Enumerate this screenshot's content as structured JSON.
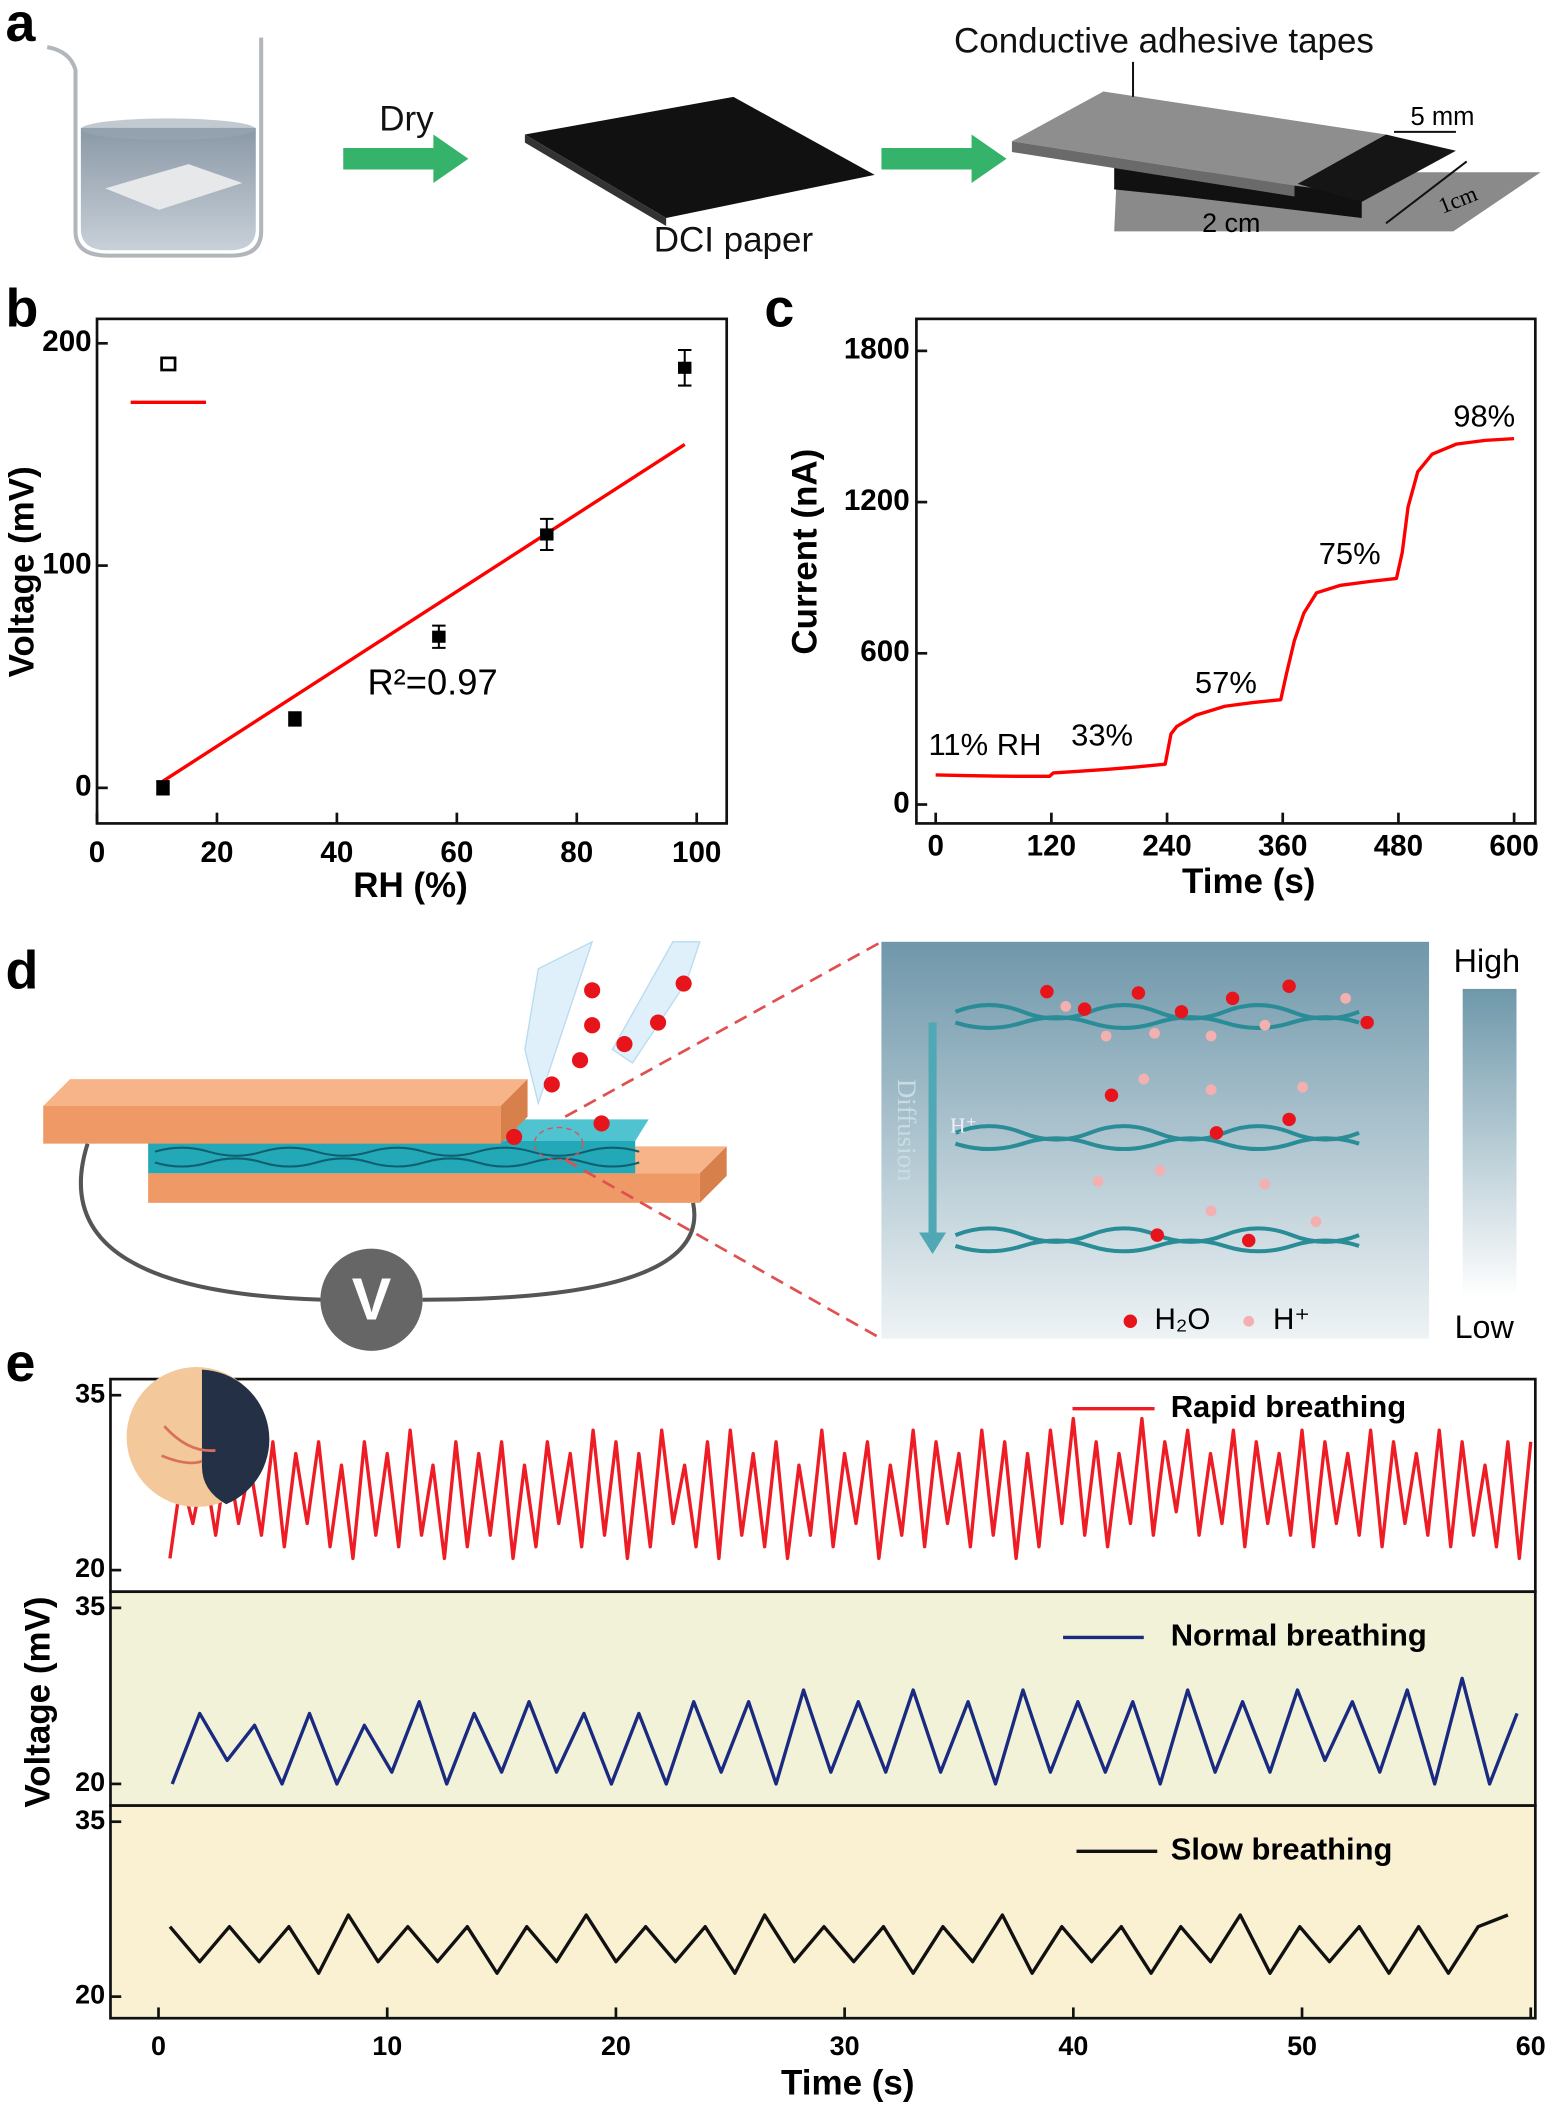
{
  "panel_labels": [
    "a",
    "b",
    "c",
    "d",
    "e"
  ],
  "diagram_a": {
    "step": "Dry",
    "paper": "DCI paper",
    "tapes": "Conductive adhesive tapes",
    "width": "5 mm",
    "depth": "1cm",
    "length": "2 cm"
  },
  "diagram_d": {
    "diffusion": "Diffusion",
    "proton": "H⁺",
    "high": "High",
    "low": "Low",
    "legend": [
      "H₂O",
      "H⁺"
    ],
    "meter": "V"
  },
  "chart_data": [
    {
      "type": "scatter",
      "x_label": "RH (%)",
      "y_label": "Voltage (mV)",
      "annotation": "R²=0.97",
      "x": [
        11,
        33,
        57,
        75,
        98
      ],
      "values": [
        0,
        31,
        68,
        114,
        189
      ],
      "errors": [
        3,
        3,
        5,
        7,
        8
      ],
      "color": "#000000",
      "fit": {
        "x": [
          11,
          98
        ],
        "values": [
          3,
          154.5
        ],
        "color": "#ff0000"
      },
      "xlim": [
        0,
        105
      ],
      "ylim": [
        -16,
        211
      ],
      "xticks": [
        0,
        20,
        40,
        60,
        80,
        100
      ],
      "yticks": [
        0,
        100,
        200
      ]
    },
    {
      "type": "line",
      "x_label": "Time (s)",
      "y_label": "Current (nA)",
      "color": "#ff0000",
      "annotations": [
        "11% RH",
        "33%",
        "57%",
        "75%",
        "98%"
      ],
      "x": [
        0,
        30,
        60,
        90,
        118,
        122,
        150,
        180,
        210,
        238,
        244,
        250,
        270,
        300,
        330,
        358,
        364,
        372,
        382,
        395,
        420,
        450,
        478,
        484,
        490,
        500,
        515,
        540,
        570,
        600
      ],
      "values": [
        117,
        115,
        113,
        112,
        112,
        125,
        132,
        140,
        150,
        160,
        280,
        310,
        355,
        390,
        405,
        416,
        520,
        650,
        760,
        840,
        870,
        885,
        897,
        1000,
        1180,
        1320,
        1390,
        1430,
        1445,
        1452
      ],
      "xlim": [
        -20,
        622
      ],
      "ylim": [
        -75,
        1927
      ],
      "xticks": [
        0,
        120,
        240,
        360,
        480,
        600
      ],
      "yticks": [
        0,
        600,
        1200,
        1800
      ]
    },
    {
      "type": "line",
      "legend": "upper right",
      "xlim": [
        -2.1,
        60.2
      ],
      "ylim": [
        18.15,
        36.38
      ],
      "yticks": [
        20,
        35
      ],
      "series": [
        {
          "name": "Rapid breathing",
          "color": "#ee1c25",
          "x": [
            0.5,
            1,
            1.5,
            2,
            2.5,
            3,
            3.5,
            4,
            4.5,
            5,
            5.5,
            6,
            6.5,
            7,
            7.5,
            8,
            8.5,
            9,
            9.5,
            10,
            10.5,
            11,
            11.5,
            12,
            12.5,
            13,
            13.5,
            14,
            14.5,
            15,
            15.5,
            16,
            16.5,
            17,
            17.5,
            18,
            18.5,
            19,
            19.5,
            20,
            20.5,
            21,
            21.5,
            22,
            22.5,
            23,
            23.5,
            24,
            24.5,
            25,
            25.5,
            26,
            26.5,
            27,
            27.5,
            28,
            28.5,
            29,
            29.5,
            30,
            30.5,
            31,
            31.5,
            32,
            32.5,
            33,
            33.5,
            34,
            34.5,
            35,
            35.5,
            36,
            36.5,
            37,
            37.5,
            38,
            38.5,
            39,
            39.5,
            40,
            40.5,
            41,
            41.5,
            42,
            42.5,
            43,
            43.5,
            44,
            44.5,
            45,
            45.5,
            46,
            46.5,
            47,
            47.5,
            48,
            48.5,
            49,
            49.5,
            50,
            50.5,
            51,
            51.5,
            52,
            52.5,
            53,
            53.5,
            54,
            54.5,
            55,
            55.5,
            56,
            56.5,
            57,
            57.5,
            58,
            58.5,
            59,
            59.5,
            60
          ],
          "values": [
            21,
            28,
            24,
            29,
            23,
            30,
            24,
            29,
            23,
            31,
            22,
            30,
            24,
            31,
            22,
            29,
            21,
            31,
            23,
            30,
            22,
            32,
            23,
            29,
            21,
            31,
            22,
            30,
            23,
            31,
            21,
            29,
            22,
            31,
            24,
            30,
            22,
            32,
            23,
            31,
            21,
            30,
            22,
            32,
            24,
            29,
            22,
            31,
            21,
            32,
            23,
            30,
            22,
            31,
            21,
            29,
            23,
            32,
            22,
            30,
            24,
            31,
            21,
            29,
            23,
            32,
            22,
            31,
            24,
            30,
            22,
            32,
            23,
            31,
            21,
            30,
            22,
            32,
            24,
            33,
            23,
            31,
            22,
            30,
            24,
            33,
            23,
            31,
            25,
            32,
            23,
            30,
            24,
            32,
            22,
            31,
            24,
            30,
            23,
            32,
            22,
            31,
            24,
            30,
            23,
            32,
            22,
            31,
            24,
            30,
            23,
            32,
            22,
            31,
            23,
            29,
            22,
            31,
            21,
            31
          ]
        }
      ]
    },
    {
      "type": "line",
      "legend": "upper right",
      "y_label": "Voltage (mV)",
      "xlim": [
        -2.1,
        60.2
      ],
      "ylim": [
        18.15,
        36.38
      ],
      "yticks": [
        20,
        35
      ],
      "series": [
        {
          "name": "Normal breathing",
          "color": "#1a2a80",
          "x": [
            0.6,
            1.8,
            3,
            4.2,
            5.4,
            6.6,
            7.8,
            9,
            10.2,
            11.4,
            12.6,
            13.8,
            15,
            16.2,
            17.4,
            18.6,
            19.8,
            21,
            22.2,
            23.4,
            24.6,
            25.8,
            27,
            28.2,
            29.4,
            30.6,
            31.8,
            33,
            34.2,
            35.4,
            36.6,
            37.8,
            39,
            40.2,
            41.4,
            42.6,
            43.8,
            45,
            46.2,
            47.4,
            48.6,
            49.8,
            51,
            52.2,
            53.4,
            54.6,
            55.8,
            57,
            58.2,
            59.4
          ],
          "values": [
            20,
            26,
            22,
            25,
            20,
            26,
            20,
            25,
            21,
            27,
            20,
            26,
            21,
            27,
            21,
            26,
            20,
            26,
            20,
            27,
            21,
            27,
            20,
            28,
            21,
            27,
            21,
            28,
            21,
            27,
            20,
            28,
            21,
            27,
            21,
            27,
            20,
            28,
            21,
            27,
            21,
            28,
            22,
            27,
            21,
            28,
            20,
            29,
            20,
            26
          ]
        }
      ]
    },
    {
      "type": "line",
      "legend": "upper right",
      "x_label": "Time (s)",
      "xlim": [
        -2.1,
        60.2
      ],
      "ylim": [
        18.15,
        36.38
      ],
      "yticks": [
        20,
        35
      ],
      "xticks": [
        0,
        10,
        20,
        30,
        40,
        50,
        60
      ],
      "series": [
        {
          "name": "Slow breathing",
          "color": "#111111",
          "x": [
            0.5,
            1.8,
            3.1,
            4.4,
            5.7,
            7,
            8.3,
            9.6,
            10.9,
            12.2,
            13.5,
            14.8,
            16.1,
            17.4,
            18.7,
            20,
            21.3,
            22.6,
            23.9,
            25.2,
            26.5,
            27.8,
            29.1,
            30.4,
            31.7,
            33,
            34.3,
            35.6,
            36.9,
            38.2,
            39.5,
            40.8,
            42.1,
            43.4,
            44.7,
            46,
            47.3,
            48.6,
            49.9,
            51.2,
            52.5,
            53.8,
            55.1,
            56.4,
            57.7,
            59
          ],
          "values": [
            26,
            23,
            26,
            23,
            26,
            22,
            27,
            23,
            26,
            23,
            26,
            22,
            26,
            23,
            27,
            23,
            26,
            23,
            26,
            22,
            27,
            23,
            26,
            23,
            26,
            22,
            26,
            23,
            27,
            22,
            26,
            23,
            26,
            22,
            26,
            23,
            27,
            22,
            26,
            23,
            26,
            22,
            26,
            22,
            26,
            27
          ]
        }
      ]
    }
  ]
}
